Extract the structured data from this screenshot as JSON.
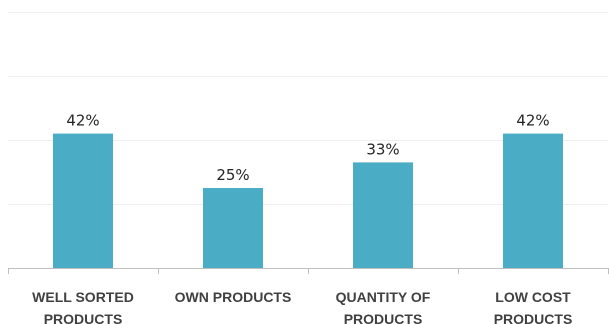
{
  "chart_data": {
    "type": "bar",
    "categories": [
      [
        "WELL SORTED",
        "PRODUCTS"
      ],
      [
        "OWN PRODUCTS"
      ],
      [
        "QUANTITY OF",
        "PRODUCTS"
      ],
      [
        "LOW COST",
        "PRODUCTS"
      ]
    ],
    "values": [
      42,
      25,
      33,
      42
    ],
    "data_labels": [
      "42%",
      "25%",
      "33%",
      "42%"
    ],
    "value_format": "percent",
    "ylim": [
      0,
      80
    ],
    "grid": true,
    "legend": "none",
    "title": "",
    "xlabel": "",
    "ylabel": "",
    "bar_color": "#4bacc6"
  }
}
